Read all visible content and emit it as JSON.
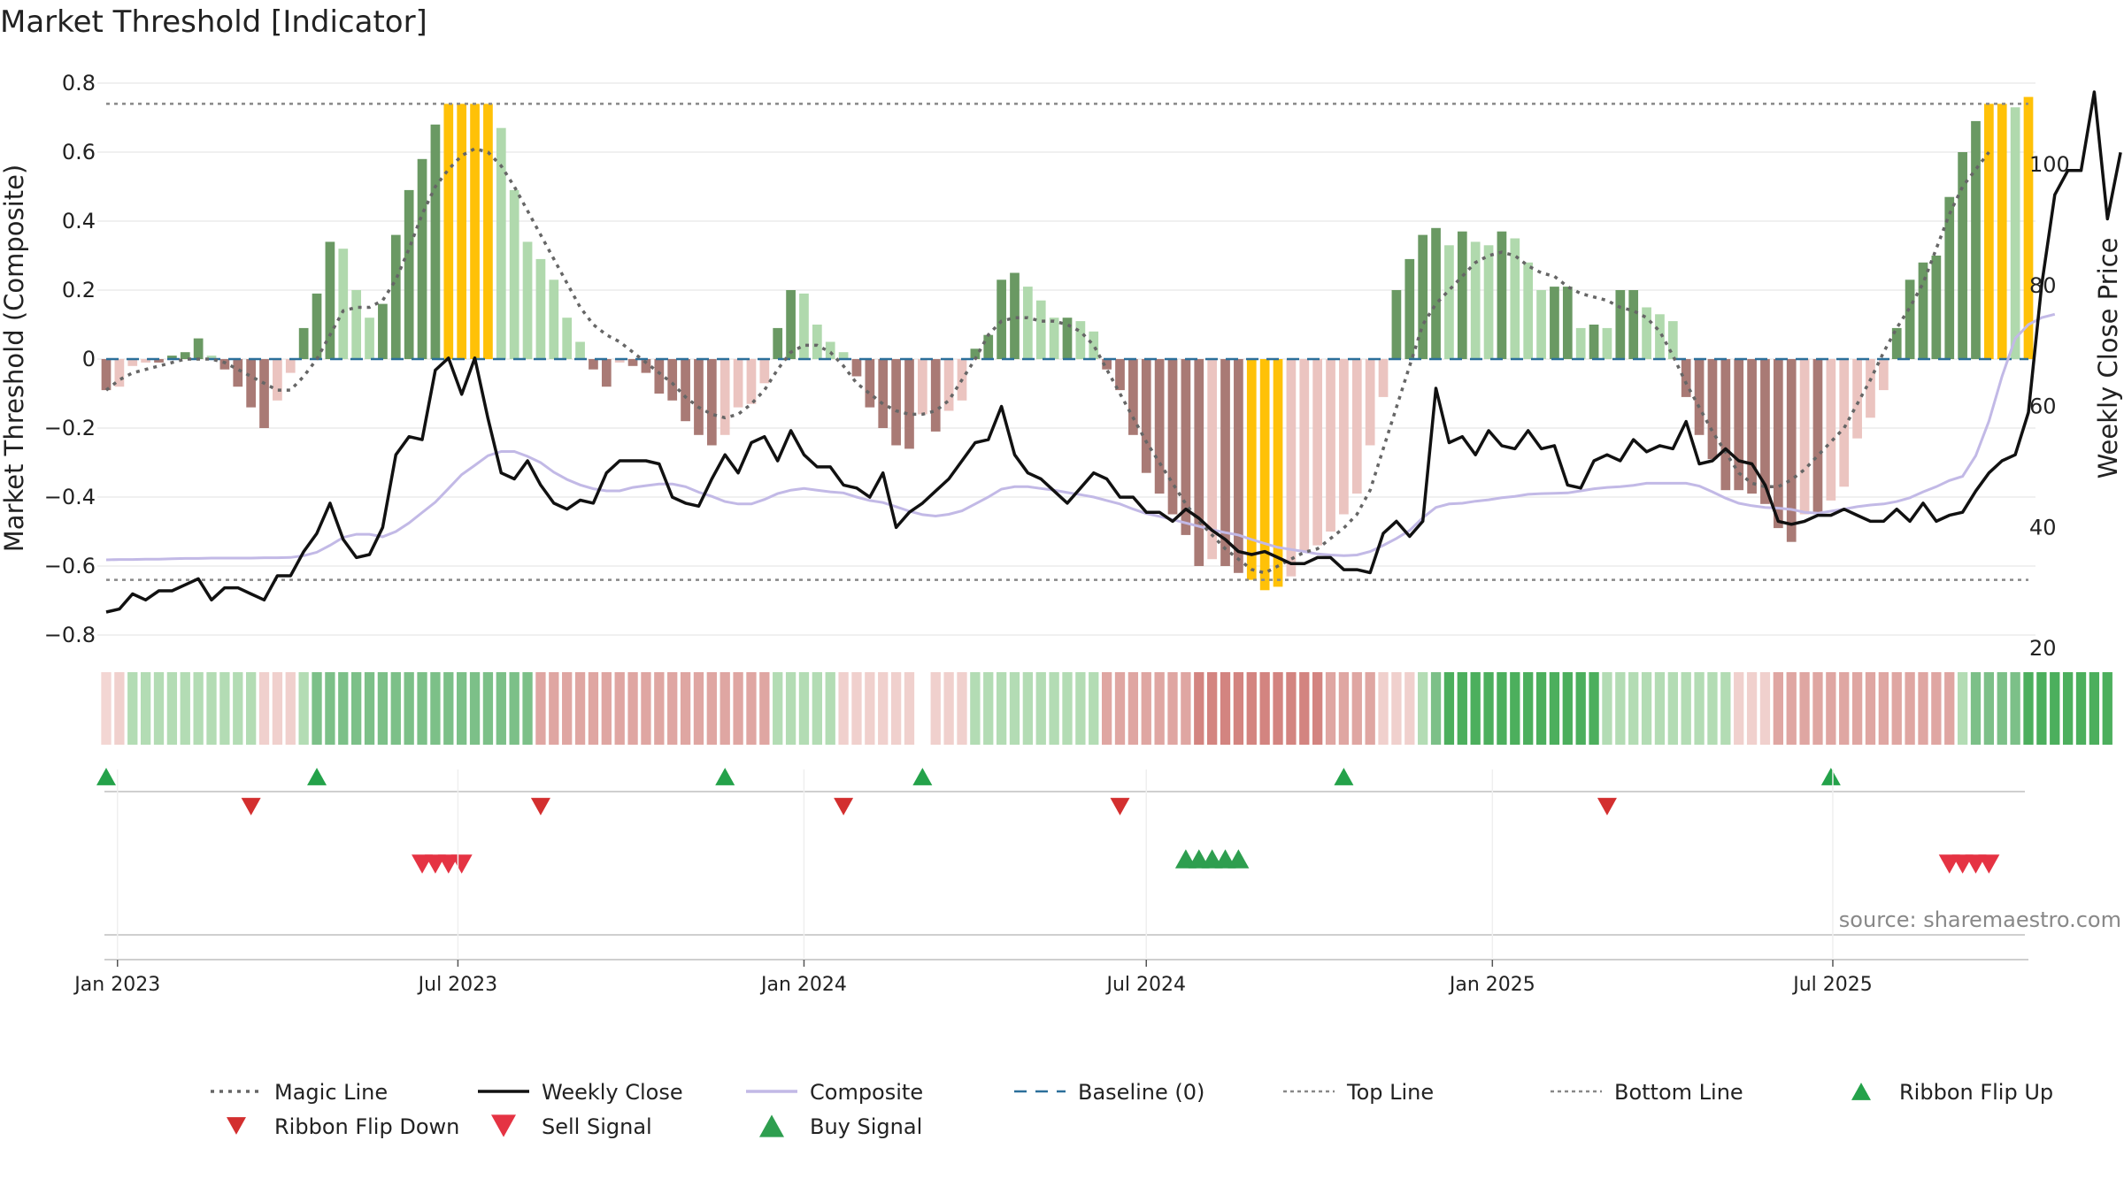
{
  "chart_data": {
    "type": "bar",
    "title": "Market Threshold [Indicator]",
    "source_label": "source: sharemaestro.com",
    "ylabel_left": "Market Threshold (Composite)",
    "ylabel_right": "Weekly Close Price",
    "ylim_left": [
      -0.8,
      0.8
    ],
    "ylim_right": [
      20,
      110
    ],
    "yticks_left": [
      0.8,
      0.6,
      0.4,
      0.2,
      0,
      -0.2,
      -0.4,
      -0.6,
      -0.8
    ],
    "ytick_labels_left": [
      "0.8",
      "0.6",
      "0.4",
      "0.2",
      "0",
      "−0.2",
      "−0.4",
      "−0.6",
      "−0.8"
    ],
    "yticks_right": [
      100,
      80,
      60,
      40,
      20
    ],
    "ytick_labels_right": [
      "100",
      "80",
      "60",
      "40",
      "20"
    ],
    "x_start": "2022-12-26",
    "x_end": "2025-09-29",
    "date_ticks": [
      {
        "date": "2023-01-01",
        "label": "Jan 2023"
      },
      {
        "date": "2023-07-01",
        "label": "Jul 2023"
      },
      {
        "date": "2024-01-01",
        "label": "Jan 2024"
      },
      {
        "date": "2024-07-01",
        "label": "Jul 2024"
      },
      {
        "date": "2025-01-01",
        "label": "Jan 2025"
      },
      {
        "date": "2025-07-01",
        "label": "Jul 2025"
      }
    ],
    "top_line": 0.74,
    "bottom_line": -0.64,
    "composite_bars": [
      -0.09,
      -0.08,
      -0.02,
      -0.01,
      -0.01,
      0.01,
      0.02,
      0.06,
      0.01,
      -0.03,
      -0.08,
      -0.14,
      -0.2,
      -0.12,
      -0.04,
      0.09,
      0.19,
      0.34,
      0.32,
      0.2,
      0.12,
      0.16,
      0.36,
      0.49,
      0.58,
      0.68,
      0.74,
      0.74,
      0.74,
      0.74,
      0.67,
      0.49,
      0.34,
      0.29,
      0.23,
      0.12,
      0.05,
      -0.03,
      -0.08,
      -0.01,
      -0.02,
      -0.04,
      -0.1,
      -0.12,
      -0.18,
      -0.22,
      -0.25,
      -0.22,
      -0.14,
      -0.13,
      -0.07,
      0.09,
      0.2,
      0.19,
      0.1,
      0.05,
      0.02,
      -0.05,
      -0.14,
      -0.2,
      -0.25,
      -0.26,
      -0.16,
      -0.21,
      -0.15,
      -0.12,
      0.03,
      0.07,
      0.23,
      0.25,
      0.21,
      0.17,
      0.12,
      0.12,
      0.11,
      0.08,
      -0.03,
      -0.09,
      -0.22,
      -0.33,
      -0.39,
      -0.45,
      -0.51,
      -0.6,
      -0.58,
      -0.6,
      -0.62,
      -0.64,
      -0.67,
      -0.66,
      -0.63,
      -0.56,
      -0.54,
      -0.5,
      -0.45,
      -0.39,
      -0.25,
      -0.11,
      0.2,
      0.29,
      0.36,
      0.38,
      0.33,
      0.37,
      0.34,
      0.33,
      0.37,
      0.35,
      0.28,
      0.2,
      0.21,
      0.21,
      0.09,
      0.1,
      0.09,
      0.2,
      0.2,
      0.15,
      0.13,
      0.11,
      -0.11,
      -0.22,
      -0.29,
      -0.38,
      -0.38,
      -0.39,
      -0.42,
      -0.49,
      -0.53,
      -0.45,
      -0.45,
      -0.41,
      -0.37,
      -0.23,
      -0.17,
      -0.09,
      0.09,
      0.23,
      0.28,
      0.3,
      0.47,
      0.6,
      0.69,
      0.74,
      0.74,
      0.73,
      0.76
    ],
    "magic_line": [
      -0.09,
      -0.06,
      -0.04,
      -0.03,
      -0.02,
      -0.01,
      0.0,
      0.0,
      0.0,
      -0.01,
      -0.03,
      -0.05,
      -0.07,
      -0.09,
      -0.09,
      -0.05,
      0.0,
      0.07,
      0.14,
      0.15,
      0.15,
      0.17,
      0.23,
      0.32,
      0.42,
      0.5,
      0.55,
      0.59,
      0.61,
      0.6,
      0.56,
      0.5,
      0.43,
      0.36,
      0.29,
      0.22,
      0.15,
      0.1,
      0.07,
      0.05,
      0.02,
      -0.01,
      -0.04,
      -0.07,
      -0.11,
      -0.14,
      -0.16,
      -0.17,
      -0.16,
      -0.13,
      -0.09,
      -0.03,
      0.02,
      0.04,
      0.04,
      0.02,
      -0.02,
      -0.07,
      -0.1,
      -0.13,
      -0.15,
      -0.16,
      -0.16,
      -0.15,
      -0.12,
      -0.06,
      0.0,
      0.07,
      0.11,
      0.12,
      0.12,
      0.11,
      0.11,
      0.1,
      0.08,
      0.04,
      -0.03,
      -0.1,
      -0.17,
      -0.24,
      -0.3,
      -0.36,
      -0.42,
      -0.47,
      -0.51,
      -0.55,
      -0.58,
      -0.61,
      -0.62,
      -0.6,
      -0.58,
      -0.56,
      -0.55,
      -0.52,
      -0.49,
      -0.45,
      -0.38,
      -0.26,
      -0.14,
      -0.02,
      0.1,
      0.16,
      0.2,
      0.24,
      0.28,
      0.3,
      0.31,
      0.3,
      0.27,
      0.25,
      0.24,
      0.21,
      0.19,
      0.18,
      0.17,
      0.15,
      0.14,
      0.12,
      0.08,
      0.01,
      -0.07,
      -0.14,
      -0.21,
      -0.27,
      -0.33,
      -0.36,
      -0.37,
      -0.37,
      -0.35,
      -0.32,
      -0.28,
      -0.24,
      -0.2,
      -0.13,
      -0.06,
      0.02,
      0.09,
      0.15,
      0.22,
      0.32,
      0.42,
      0.5,
      0.55,
      0.6
    ],
    "composite_line": [
      -0.582,
      -0.581,
      -0.581,
      -0.58,
      -0.58,
      -0.579,
      -0.578,
      -0.578,
      -0.577,
      -0.577,
      -0.577,
      -0.577,
      -0.576,
      -0.576,
      -0.575,
      -0.57,
      -0.56,
      -0.54,
      -0.517,
      -0.508,
      -0.508,
      -0.515,
      -0.5,
      -0.475,
      -0.445,
      -0.415,
      -0.375,
      -0.335,
      -0.308,
      -0.28,
      -0.268,
      -0.268,
      -0.282,
      -0.3,
      -0.328,
      -0.349,
      -0.365,
      -0.376,
      -0.382,
      -0.382,
      -0.372,
      -0.367,
      -0.362,
      -0.362,
      -0.37,
      -0.386,
      -0.398,
      -0.413,
      -0.42,
      -0.42,
      -0.407,
      -0.39,
      -0.38,
      -0.375,
      -0.38,
      -0.385,
      -0.388,
      -0.4,
      -0.41,
      -0.416,
      -0.428,
      -0.441,
      -0.451,
      -0.455,
      -0.45,
      -0.44,
      -0.42,
      -0.4,
      -0.377,
      -0.37,
      -0.37,
      -0.375,
      -0.38,
      -0.387,
      -0.393,
      -0.4,
      -0.41,
      -0.42,
      -0.435,
      -0.448,
      -0.456,
      -0.465,
      -0.475,
      -0.485,
      -0.495,
      -0.503,
      -0.51,
      -0.523,
      -0.535,
      -0.546,
      -0.552,
      -0.558,
      -0.565,
      -0.568,
      -0.57,
      -0.568,
      -0.558,
      -0.54,
      -0.52,
      -0.497,
      -0.46,
      -0.43,
      -0.42,
      -0.418,
      -0.412,
      -0.408,
      -0.402,
      -0.398,
      -0.392,
      -0.39,
      -0.389,
      -0.388,
      -0.382,
      -0.376,
      -0.372,
      -0.37,
      -0.366,
      -0.36,
      -0.36,
      -0.36,
      -0.36,
      -0.368,
      -0.385,
      -0.403,
      -0.418,
      -0.425,
      -0.43,
      -0.432,
      -0.436,
      -0.444,
      -0.447,
      -0.441,
      -0.435,
      -0.428,
      -0.423,
      -0.42,
      -0.413,
      -0.402,
      -0.385,
      -0.37,
      -0.352,
      -0.34,
      -0.28,
      -0.18,
      -0.05,
      0.06,
      0.1,
      0.12,
      0.13
    ],
    "weekly_close": [
      26,
      26.5,
      29,
      28,
      29.5,
      29.5,
      30.5,
      31.5,
      28,
      30,
      30,
      29,
      28,
      32,
      32,
      36,
      39,
      44,
      38,
      35,
      35.5,
      40,
      52,
      55,
      54.5,
      66,
      68,
      62,
      68,
      58,
      49,
      48,
      51,
      47,
      44,
      43,
      44.5,
      44,
      49,
      51,
      51,
      51,
      50.5,
      45,
      44,
      43.5,
      48,
      52,
      49,
      54,
      55,
      51,
      56,
      52,
      50,
      50,
      47,
      46.5,
      45,
      49,
      40,
      42.5,
      44,
      46,
      48,
      51,
      54,
      54.5,
      60,
      52,
      49,
      48,
      46,
      44,
      46.5,
      49,
      48,
      45,
      45,
      42.5,
      42.5,
      41,
      43,
      41.5,
      39.5,
      38,
      36,
      35.5,
      36,
      35,
      34,
      34,
      35,
      35,
      33,
      33,
      32.5,
      39,
      41,
      38.5,
      41,
      63,
      54,
      55,
      52,
      56,
      53.5,
      53,
      56,
      53,
      53.5,
      47,
      46.5,
      51,
      52,
      51,
      54.5,
      52.5,
      53.5,
      53,
      57.5,
      50.5,
      51,
      53,
      51,
      50.5,
      47,
      41,
      40.5,
      41,
      42,
      42,
      43,
      42,
      41,
      41,
      43,
      41,
      44,
      41,
      42,
      42.5,
      46,
      49,
      51,
      52,
      59,
      80,
      95,
      99,
      99,
      112,
      91,
      102
    ],
    "ribbon": [
      0,
      -1,
      1,
      1,
      1,
      1,
      1,
      1,
      1,
      1,
      1,
      1,
      -1,
      -1,
      -1,
      1,
      2,
      2,
      2,
      2,
      2,
      2,
      2,
      2,
      2,
      2,
      2,
      2,
      2,
      2,
      2,
      2,
      2,
      -2,
      -2,
      -2,
      -2,
      -2,
      -2,
      -2,
      -2,
      -2,
      -2,
      -2,
      -2,
      -2,
      -2,
      -2,
      -2,
      -2,
      -2,
      1,
      1,
      1,
      1,
      1,
      -1,
      -1,
      -1,
      -1,
      -1,
      -1,
      null,
      -1,
      -1,
      -1,
      1,
      1,
      1,
      1,
      1,
      1,
      1,
      1,
      1,
      1,
      -2,
      -2,
      -2,
      -2,
      -2,
      -2,
      -2,
      -3,
      -3,
      -3,
      -3,
      -3,
      -3,
      -3,
      -3,
      -3,
      -3,
      -2,
      -2,
      -2,
      -2,
      -1,
      -1,
      -1,
      1,
      2,
      3,
      3,
      3,
      3,
      3,
      3,
      3,
      3,
      3,
      3,
      3,
      3,
      1,
      1,
      1,
      1,
      1,
      1,
      1,
      1,
      1,
      1,
      -1,
      -1,
      -1,
      -2,
      -2,
      -2,
      -2,
      -2,
      -2,
      -2,
      -2,
      -2,
      -2,
      -2,
      -2,
      -2,
      -2,
      1,
      2,
      2,
      2,
      2,
      3,
      3,
      3,
      3,
      3,
      3,
      3
    ],
    "ribbon_flip_up": [
      "2022-12-26",
      "2023-04-17",
      "2023-11-20",
      "2024-03-04",
      "2024-10-14",
      "2025-06-30"
    ],
    "ribbon_flip_down": [
      "2023-03-13",
      "2023-08-14",
      "2024-01-22",
      "2024-06-17",
      "2025-03-03"
    ],
    "sell_signal": [
      "2023-06-12",
      "2023-06-19",
      "2023-06-26",
      "2023-07-03",
      "2025-09-01",
      "2025-09-08",
      "2025-09-15",
      "2025-09-22"
    ],
    "buy_signal": [
      "2024-07-22",
      "2024-07-29",
      "2024-08-05",
      "2024-08-12",
      "2024-08-19"
    ],
    "legend": [
      {
        "label": "Magic Line",
        "style": "dotted-dark"
      },
      {
        "label": "Weekly Close",
        "style": "solid-black"
      },
      {
        "label": "Composite",
        "style": "solid-lavender"
      },
      {
        "label": "Baseline (0)",
        "style": "dashed-blue"
      },
      {
        "label": "Top Line",
        "style": "dashed-gray"
      },
      {
        "label": "Bottom Line",
        "style": "dashed-gray"
      },
      {
        "label": "Ribbon Flip Up",
        "style": "triangle-up-green"
      },
      {
        "label": "Ribbon Flip Down",
        "style": "triangle-down-red"
      },
      {
        "label": "Sell Signal",
        "style": "triangle-down-brightred"
      },
      {
        "label": "Buy Signal",
        "style": "triangle-up-brightgreen"
      }
    ],
    "colors": {
      "bar_strong_up": "#6a9963",
      "bar_weak_up": "#b0d9ad",
      "bar_strong_down": "#a97a75",
      "bar_weak_down": "#ebc4c0",
      "bar_extreme": "#ffc107",
      "magic_line": "#666666",
      "weekly_close": "#111111",
      "composite_line": "#c2b9e6",
      "baseline": "#2b6f9a",
      "threshold_line": "#888888",
      "flip_up": "#24a24a",
      "flip_down": "#d32f2f",
      "sell": "#e53343",
      "buy": "#2e9e4f"
    }
  }
}
